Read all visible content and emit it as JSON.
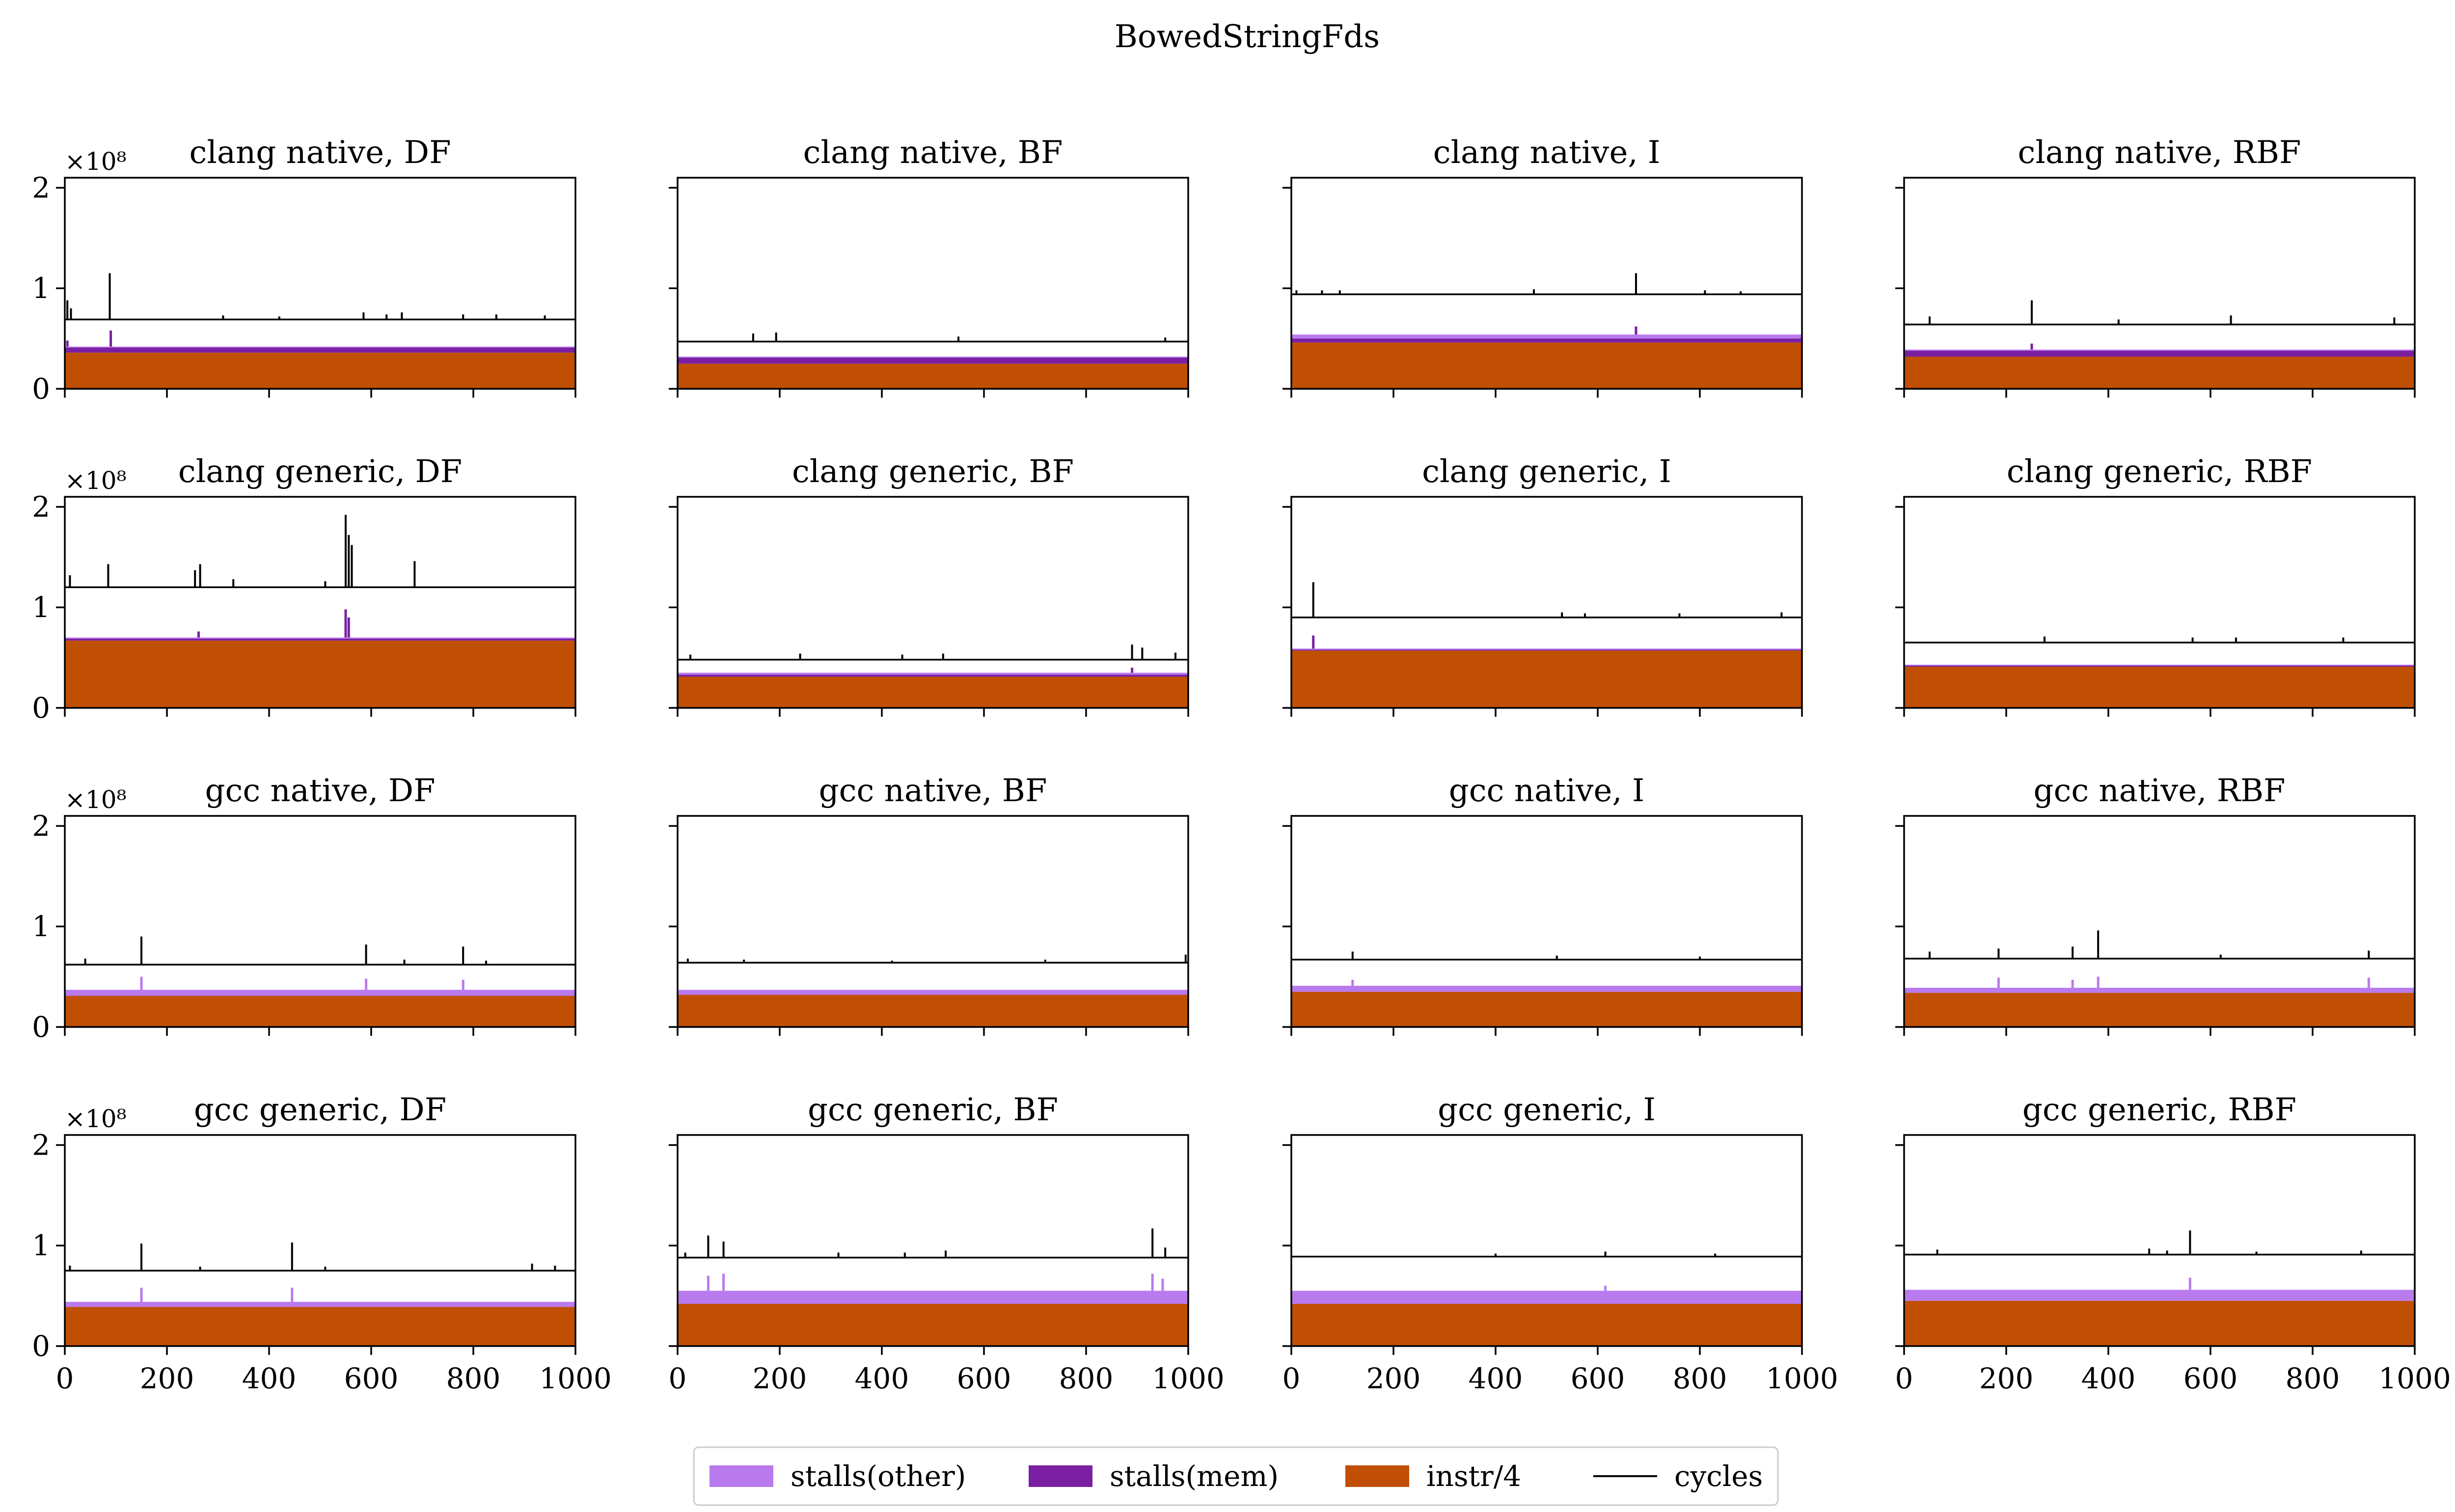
{
  "figure_title": "BowedStringFds",
  "colors": {
    "stalls_other": "#b97aee",
    "stalls_mem": "#7b1fa2",
    "instr": "#c04f03",
    "cycles": "#000000"
  },
  "chart_data": {
    "type": "area",
    "title": "BowedStringFds",
    "grid": "4 rows x 4 columns",
    "x_ticks": [
      "0",
      "200",
      "400",
      "600",
      "800",
      "1000"
    ],
    "y_ticks": [
      "0",
      "1",
      "2"
    ],
    "y_exponent_label": "×10⁸",
    "xlim": [
      0,
      1000
    ],
    "ylim": [
      0,
      2.1
    ],
    "y_unit": 100000000,
    "legend": {
      "placement": "bottom-center",
      "entries": [
        {
          "key": "stalls_other",
          "label": "stalls(other)",
          "kind": "patch"
        },
        {
          "key": "stalls_mem",
          "label": "stalls(mem)",
          "kind": "patch"
        },
        {
          "key": "instr",
          "label": "instr/4",
          "kind": "patch"
        },
        {
          "key": "cycles",
          "label": "cycles",
          "kind": "line"
        }
      ]
    },
    "panels": [
      {
        "title": "clang native, DF",
        "instr": 0.36,
        "stalls_mem": 0.05,
        "stalls_other": 0.01,
        "cycles": 0.69,
        "cycle_spikes": [
          [
            5,
            0.88
          ],
          [
            12,
            0.8
          ],
          [
            88,
            1.15
          ],
          [
            310,
            0.73
          ],
          [
            420,
            0.72
          ],
          [
            585,
            0.76
          ],
          [
            630,
            0.74
          ],
          [
            660,
            0.76
          ],
          [
            780,
            0.74
          ],
          [
            845,
            0.74
          ],
          [
            940,
            0.73
          ]
        ],
        "stall_spikes": [
          [
            5,
            0.48
          ],
          [
            90,
            0.58
          ]
        ]
      },
      {
        "title": "clang native, BF",
        "instr": 0.25,
        "stalls_mem": 0.06,
        "stalls_other": 0.01,
        "cycles": 0.47,
        "cycle_spikes": [
          [
            148,
            0.55
          ],
          [
            193,
            0.56
          ],
          [
            550,
            0.52
          ],
          [
            955,
            0.51
          ]
        ],
        "stall_spikes": []
      },
      {
        "title": "clang native, I",
        "instr": 0.46,
        "stalls_mem": 0.04,
        "stalls_other": 0.04,
        "cycles": 0.94,
        "cycle_spikes": [
          [
            10,
            0.98
          ],
          [
            60,
            0.98
          ],
          [
            95,
            0.98
          ],
          [
            475,
            0.99
          ],
          [
            675,
            1.15
          ],
          [
            810,
            0.98
          ],
          [
            880,
            0.97
          ]
        ],
        "stall_spikes": [
          [
            675,
            0.62
          ]
        ]
      },
      {
        "title": "clang native, RBF",
        "instr": 0.32,
        "stalls_mem": 0.06,
        "stalls_other": 0.01,
        "cycles": 0.64,
        "cycle_spikes": [
          [
            50,
            0.72
          ],
          [
            250,
            0.88
          ],
          [
            420,
            0.69
          ],
          [
            640,
            0.73
          ],
          [
            960,
            0.71
          ]
        ],
        "stall_spikes": [
          [
            250,
            0.45
          ]
        ]
      },
      {
        "title": "clang generic, DF",
        "instr": 0.67,
        "stalls_mem": 0.02,
        "stalls_other": 0.01,
        "cycles": 1.2,
        "cycle_spikes": [
          [
            10,
            1.32
          ],
          [
            85,
            1.43
          ],
          [
            255,
            1.37
          ],
          [
            265,
            1.43
          ],
          [
            330,
            1.28
          ],
          [
            510,
            1.26
          ],
          [
            550,
            1.92
          ],
          [
            556,
            1.72
          ],
          [
            562,
            1.62
          ],
          [
            685,
            1.46
          ]
        ],
        "stall_spikes": [
          [
            550,
            0.98
          ],
          [
            556,
            0.9
          ],
          [
            262,
            0.76
          ]
        ]
      },
      {
        "title": "clang generic, BF",
        "instr": 0.31,
        "stalls_mem": 0.02,
        "stalls_other": 0.02,
        "cycles": 0.48,
        "cycle_spikes": [
          [
            25,
            0.53
          ],
          [
            240,
            0.54
          ],
          [
            440,
            0.53
          ],
          [
            520,
            0.54
          ],
          [
            890,
            0.63
          ],
          [
            910,
            0.6
          ],
          [
            975,
            0.55
          ]
        ],
        "stall_spikes": [
          [
            890,
            0.4
          ]
        ]
      },
      {
        "title": "clang generic, I",
        "instr": 0.57,
        "stalls_mem": 0.01,
        "stalls_other": 0.01,
        "cycles": 0.9,
        "cycle_spikes": [
          [
            43,
            1.25
          ],
          [
            530,
            0.95
          ],
          [
            575,
            0.94
          ],
          [
            760,
            0.94
          ],
          [
            960,
            0.95
          ]
        ],
        "stall_spikes": [
          [
            43,
            0.72
          ]
        ]
      },
      {
        "title": "clang generic, RBF",
        "instr": 0.41,
        "stalls_mem": 0.01,
        "stalls_other": 0.01,
        "cycles": 0.65,
        "cycle_spikes": [
          [
            275,
            0.71
          ],
          [
            565,
            0.7
          ],
          [
            650,
            0.7
          ],
          [
            860,
            0.7
          ]
        ],
        "stall_spikes": []
      },
      {
        "title": "gcc native, DF",
        "instr": 0.31,
        "stalls_mem": 0.0,
        "stalls_other": 0.06,
        "cycles": 0.62,
        "cycle_spikes": [
          [
            40,
            0.68
          ],
          [
            150,
            0.9
          ],
          [
            590,
            0.82
          ],
          [
            665,
            0.67
          ],
          [
            780,
            0.8
          ],
          [
            825,
            0.66
          ]
        ],
        "stall_spikes": [
          [
            150,
            0.5
          ],
          [
            590,
            0.48
          ],
          [
            780,
            0.47
          ]
        ]
      },
      {
        "title": "gcc native, BF",
        "instr": 0.32,
        "stalls_mem": 0.0,
        "stalls_other": 0.05,
        "cycles": 0.64,
        "cycle_spikes": [
          [
            20,
            0.68
          ],
          [
            130,
            0.67
          ],
          [
            420,
            0.66
          ],
          [
            720,
            0.67
          ],
          [
            995,
            0.72
          ]
        ],
        "stall_spikes": []
      },
      {
        "title": "gcc native, I",
        "instr": 0.35,
        "stalls_mem": 0.0,
        "stalls_other": 0.06,
        "cycles": 0.67,
        "cycle_spikes": [
          [
            120,
            0.75
          ],
          [
            520,
            0.71
          ],
          [
            800,
            0.7
          ]
        ],
        "stall_spikes": [
          [
            120,
            0.47
          ]
        ]
      },
      {
        "title": "gcc native, RBF",
        "instr": 0.34,
        "stalls_mem": 0.0,
        "stalls_other": 0.05,
        "cycles": 0.68,
        "cycle_spikes": [
          [
            50,
            0.75
          ],
          [
            185,
            0.78
          ],
          [
            330,
            0.8
          ],
          [
            380,
            0.96
          ],
          [
            620,
            0.72
          ],
          [
            910,
            0.76
          ]
        ],
        "stall_spikes": [
          [
            185,
            0.49
          ],
          [
            330,
            0.47
          ],
          [
            380,
            0.5
          ],
          [
            910,
            0.49
          ]
        ]
      },
      {
        "title": "gcc generic, DF",
        "instr": 0.39,
        "stalls_mem": 0.0,
        "stalls_other": 0.05,
        "cycles": 0.75,
        "cycle_spikes": [
          [
            10,
            0.8
          ],
          [
            150,
            1.02
          ],
          [
            265,
            0.79
          ],
          [
            445,
            1.03
          ],
          [
            510,
            0.79
          ],
          [
            915,
            0.82
          ],
          [
            960,
            0.8
          ]
        ],
        "stall_spikes": [
          [
            150,
            0.58
          ],
          [
            445,
            0.58
          ]
        ]
      },
      {
        "title": "gcc generic, BF",
        "instr": 0.42,
        "stalls_mem": 0.0,
        "stalls_other": 0.13,
        "cycles": 0.88,
        "cycle_spikes": [
          [
            15,
            0.93
          ],
          [
            60,
            1.1
          ],
          [
            90,
            1.04
          ],
          [
            315,
            0.93
          ],
          [
            445,
            0.93
          ],
          [
            525,
            0.95
          ],
          [
            930,
            1.17
          ],
          [
            955,
            0.98
          ]
        ],
        "stall_spikes": [
          [
            60,
            0.7
          ],
          [
            90,
            0.72
          ],
          [
            930,
            0.72
          ],
          [
            950,
            0.67
          ]
        ]
      },
      {
        "title": "gcc generic, I",
        "instr": 0.42,
        "stalls_mem": 0.0,
        "stalls_other": 0.13,
        "cycles": 0.89,
        "cycle_spikes": [
          [
            400,
            0.92
          ],
          [
            615,
            0.94
          ],
          [
            830,
            0.92
          ]
        ],
        "stall_spikes": [
          [
            615,
            0.6
          ]
        ]
      },
      {
        "title": "gcc generic, RBF",
        "instr": 0.45,
        "stalls_mem": 0.0,
        "stalls_other": 0.11,
        "cycles": 0.91,
        "cycle_spikes": [
          [
            65,
            0.96
          ],
          [
            480,
            0.97
          ],
          [
            515,
            0.95
          ],
          [
            560,
            1.15
          ],
          [
            690,
            0.94
          ],
          [
            895,
            0.95
          ]
        ],
        "stall_spikes": [
          [
            560,
            0.68
          ]
        ]
      }
    ]
  }
}
